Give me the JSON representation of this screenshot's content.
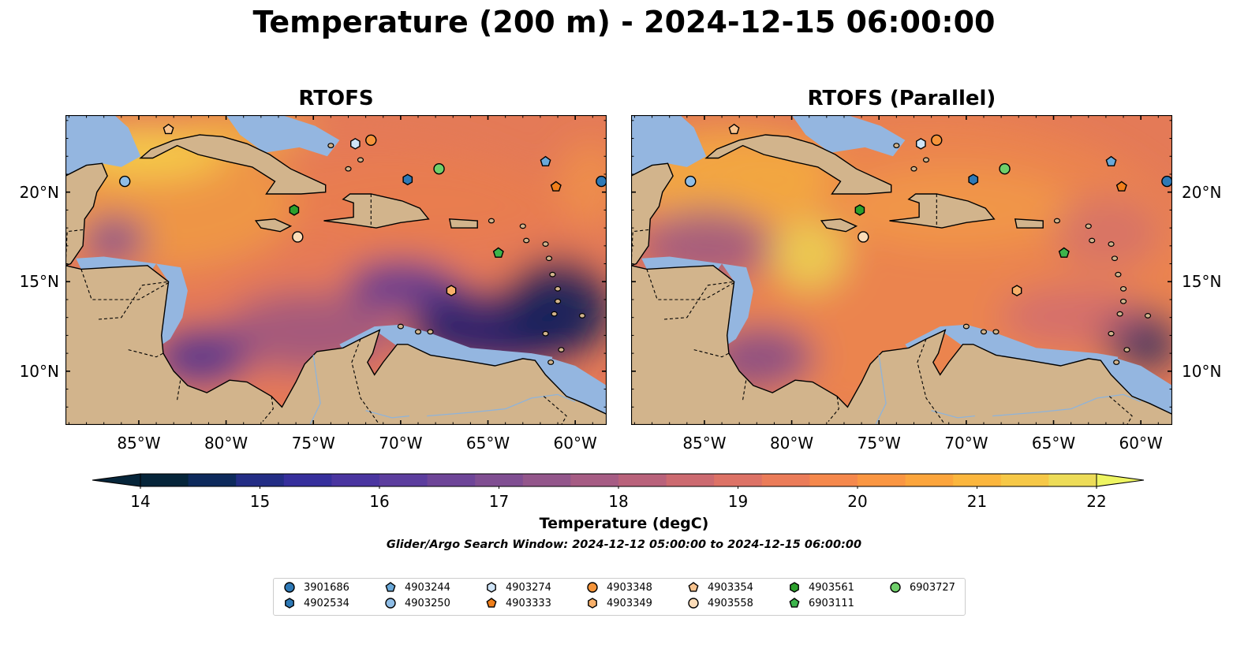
{
  "title": "Temperature (200 m) - 2024-12-15 06:00:00",
  "panels": [
    {
      "title": "RTOFS"
    },
    {
      "title": "RTOFS (Parallel)"
    }
  ],
  "axes": {
    "lon_labels": [
      "85°W",
      "80°W",
      "75°W",
      "70°W",
      "65°W",
      "60°W"
    ],
    "lat_labels": [
      "20°N",
      "15°N",
      "10°N"
    ]
  },
  "colorbar": {
    "label": "Temperature (degC)",
    "ticks": [
      "14",
      "15",
      "16",
      "17",
      "18",
      "19",
      "20",
      "21",
      "22"
    ],
    "colors": [
      "#06253a",
      "#0d2a5c",
      "#232d85",
      "#362f9c",
      "#4a35a0",
      "#5c3d9e",
      "#6e4598",
      "#804e92",
      "#93568b",
      "#a65c84",
      "#b9627b",
      "#cc6a70",
      "#dd7266",
      "#eb7c59",
      "#f5884c",
      "#fa9642",
      "#fca53c",
      "#fbb63d",
      "#f6c847",
      "#eddc58"
    ],
    "extend_low": "#06253a",
    "extend_high": "#eef562"
  },
  "search_window": "Glider/Argo Search Window: 2024-12-12 05:00:00 to 2024-12-15 06:00:00",
  "colors": {
    "land": "#d2b48c",
    "shelf": "#94b6e0",
    "deep_cold": "#06253a"
  },
  "legend": [
    {
      "id": "3901686",
      "marker": "circle",
      "color": "#2e79b6"
    },
    {
      "id": "4902534",
      "marker": "hexagon",
      "color": "#2e79b6"
    },
    {
      "id": "4903244",
      "marker": "pentagon",
      "color": "#6aa9d9"
    },
    {
      "id": "4903250",
      "marker": "circle",
      "color": "#8fbde6"
    },
    {
      "id": "4903274",
      "marker": "hexagon",
      "color": "#cfe4f7"
    },
    {
      "id": "4903333",
      "marker": "pentagon",
      "color": "#f07f1b"
    },
    {
      "id": "4903348",
      "marker": "circle",
      "color": "#f5943a"
    },
    {
      "id": "4903349",
      "marker": "hexagon",
      "color": "#f8b06a"
    },
    {
      "id": "4903354",
      "marker": "pentagon",
      "color": "#f9c48f"
    },
    {
      "id": "4903558",
      "marker": "circle",
      "color": "#fcdcb8"
    },
    {
      "id": "4903561",
      "marker": "hexagon",
      "color": "#2ca02c"
    },
    {
      "id": "6903111",
      "marker": "pentagon",
      "color": "#3cb44b"
    },
    {
      "id": "6903727",
      "marker": "circle",
      "color": "#6fcf6a"
    }
  ],
  "floats": [
    {
      "id": "3901686",
      "lon": -58.5,
      "lat": 20.6
    },
    {
      "id": "4902534",
      "lon": -69.6,
      "lat": 20.7
    },
    {
      "id": "4903244",
      "lon": -61.7,
      "lat": 21.7
    },
    {
      "id": "4903250",
      "lon": -85.8,
      "lat": 20.6
    },
    {
      "id": "4903274",
      "lon": -72.6,
      "lat": 22.7
    },
    {
      "id": "4903333",
      "lon": -61.1,
      "lat": 20.3
    },
    {
      "id": "4903348",
      "lon": -71.7,
      "lat": 22.9
    },
    {
      "id": "4903349",
      "lon": -67.1,
      "lat": 14.5
    },
    {
      "id": "4903354",
      "lon": -83.3,
      "lat": 23.5
    },
    {
      "id": "4903558",
      "lon": -75.9,
      "lat": 17.5
    },
    {
      "id": "4903561",
      "lon": -76.1,
      "lat": 19.0
    },
    {
      "id": "6903111",
      "lon": -64.4,
      "lat": 16.6
    },
    {
      "id": "6903727",
      "lon": -67.8,
      "lat": 21.3
    }
  ]
}
